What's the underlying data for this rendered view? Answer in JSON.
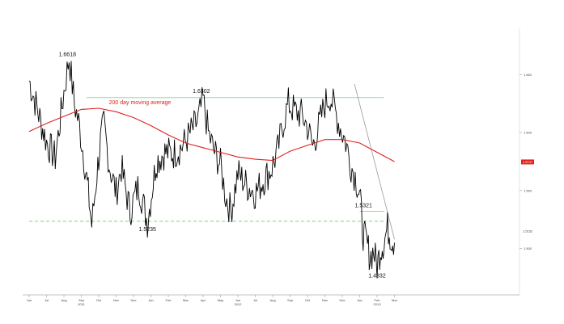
{
  "chart_data": {
    "type": "line",
    "title": "",
    "xlabel": "",
    "ylabel": "",
    "x_ticks": [
      "Jun",
      "Jul",
      "Aug",
      "Sep",
      "Oct",
      "Nov",
      "Dec",
      "Jan",
      "Feb",
      "Mar",
      "Apr",
      "May",
      "Jun",
      "Jul",
      "Aug",
      "Sep",
      "Oct",
      "Nov",
      "Dec",
      "Jan",
      "Feb",
      "Mar"
    ],
    "year_labels": [
      {
        "text": "2011",
        "month_index": 3
      },
      {
        "text": "2012",
        "month_index": 12
      },
      {
        "text": "2013",
        "month_index": 20
      }
    ],
    "y_ticks": [
      {
        "value": 1.65,
        "label": "1.650"
      },
      {
        "value": 1.6,
        "label": "1.600"
      },
      {
        "value": 1.55,
        "label": "1.550"
      },
      {
        "value": 1.5,
        "label": "1.500"
      }
    ],
    "ylim": [
      1.46,
      1.69
    ],
    "price_tag": {
      "value": 1.5747,
      "label": "1.5747"
    },
    "current_price": {
      "value": 1.5152,
      "label": "1.5152"
    },
    "series": [
      {
        "name": "",
        "color": "#000000",
        "points": [
          [
            0.0,
            1.645
          ],
          [
            1.0,
            1.592
          ],
          [
            1.5,
            1.578
          ],
          [
            2.0,
            1.635
          ],
          [
            2.3,
            1.665
          ],
          [
            2.6,
            1.625
          ],
          [
            2.9,
            1.605
          ],
          [
            3.2,
            1.573
          ],
          [
            3.4,
            1.548
          ],
          [
            3.6,
            1.52
          ],
          [
            3.9,
            1.565
          ],
          [
            4.1,
            1.592
          ],
          [
            4.3,
            1.608
          ],
          [
            4.6,
            1.573
          ],
          [
            5.0,
            1.548
          ],
          [
            5.3,
            1.57
          ],
          [
            5.8,
            1.532
          ],
          [
            6.3,
            1.555
          ],
          [
            6.8,
            1.523
          ],
          [
            7.3,
            1.575
          ],
          [
            7.8,
            1.583
          ],
          [
            8.3,
            1.582
          ],
          [
            8.8,
            1.588
          ],
          [
            9.2,
            1.598
          ],
          [
            9.7,
            1.61
          ],
          [
            10.0,
            1.628
          ],
          [
            10.3,
            1.6
          ],
          [
            10.6,
            1.585
          ],
          [
            11.0,
            1.572
          ],
          [
            11.3,
            1.545
          ],
          [
            11.6,
            1.532
          ],
          [
            12.0,
            1.565
          ],
          [
            12.5,
            1.555
          ],
          [
            13.0,
            1.548
          ],
          [
            13.5,
            1.56
          ],
          [
            13.9,
            1.568
          ],
          [
            14.3,
            1.585
          ],
          [
            14.6,
            1.608
          ],
          [
            14.9,
            1.625
          ],
          [
            15.3,
            1.618
          ],
          [
            15.7,
            1.615
          ],
          [
            16.0,
            1.605
          ],
          [
            16.3,
            1.588
          ],
          [
            16.7,
            1.608
          ],
          [
            17.0,
            1.625
          ],
          [
            17.3,
            1.632
          ],
          [
            17.6,
            1.618
          ],
          [
            17.9,
            1.604
          ],
          [
            18.2,
            1.592
          ],
          [
            18.5,
            1.572
          ],
          [
            18.8,
            1.56
          ],
          [
            19.0,
            1.545
          ],
          [
            19.2,
            1.513
          ],
          [
            19.4,
            1.505
          ],
          [
            19.6,
            1.493
          ],
          [
            19.8,
            1.498
          ],
          [
            20.0,
            1.485
          ],
          [
            20.2,
            1.5
          ],
          [
            20.4,
            1.506
          ],
          [
            20.6,
            1.518
          ],
          [
            20.8,
            1.51
          ],
          [
            21.0,
            1.505
          ]
        ]
      },
      {
        "name": "200 day moving average",
        "color": "#e02020",
        "points": [
          [
            0.0,
            1.601
          ],
          [
            1.0,
            1.608
          ],
          [
            2.0,
            1.614
          ],
          [
            3.0,
            1.62
          ],
          [
            4.0,
            1.621
          ],
          [
            5.0,
            1.618
          ],
          [
            6.0,
            1.613
          ],
          [
            7.0,
            1.606
          ],
          [
            8.0,
            1.598
          ],
          [
            9.0,
            1.591
          ],
          [
            10.0,
            1.587
          ],
          [
            11.0,
            1.583
          ],
          [
            12.0,
            1.579
          ],
          [
            13.0,
            1.577
          ],
          [
            14.0,
            1.576
          ],
          [
            15.0,
            1.584
          ],
          [
            16.0,
            1.589
          ],
          [
            17.0,
            1.594
          ],
          [
            18.0,
            1.594
          ],
          [
            19.0,
            1.591
          ],
          [
            20.0,
            1.583
          ],
          [
            21.0,
            1.575
          ]
        ]
      }
    ],
    "reference_lines": [
      {
        "type": "horizontal",
        "value": 1.6302,
        "from_x": 3.3,
        "to_x": 20.4,
        "style": "solid",
        "color": "#8fcf8f"
      },
      {
        "type": "horizontal",
        "value": 1.5235,
        "from_x": 0.0,
        "to_x": 20.4,
        "style": "dashed",
        "color": "#5fb85f"
      },
      {
        "type": "horizontal",
        "value": 1.5321,
        "from_x": 19.0,
        "to_x": 20.4,
        "style": "solid",
        "color": "#8fcf8f"
      },
      {
        "type": "trend",
        "from": [
          18.7,
          1.642
        ],
        "to": [
          21.0,
          1.508
        ],
        "style": "solid",
        "color": "#999999"
      }
    ],
    "annotations": [
      {
        "text": "1.6618",
        "x": 2.2,
        "y": 1.6618,
        "position": "above"
      },
      {
        "text": "1.6302",
        "x": 9.9,
        "y": 1.6302,
        "position": "above"
      },
      {
        "text": "1.5235",
        "x": 6.8,
        "y": 1.5235,
        "position": "below"
      },
      {
        "text": "1.5321",
        "x": 19.0,
        "y": 1.5321,
        "position": "above-left"
      },
      {
        "text": "1.4832",
        "x": 20.0,
        "y": 1.4832,
        "position": "below"
      },
      {
        "text": "200 day moving average",
        "x": 4.4,
        "y": 1.623,
        "position": "right",
        "color": "#e02020"
      }
    ]
  }
}
